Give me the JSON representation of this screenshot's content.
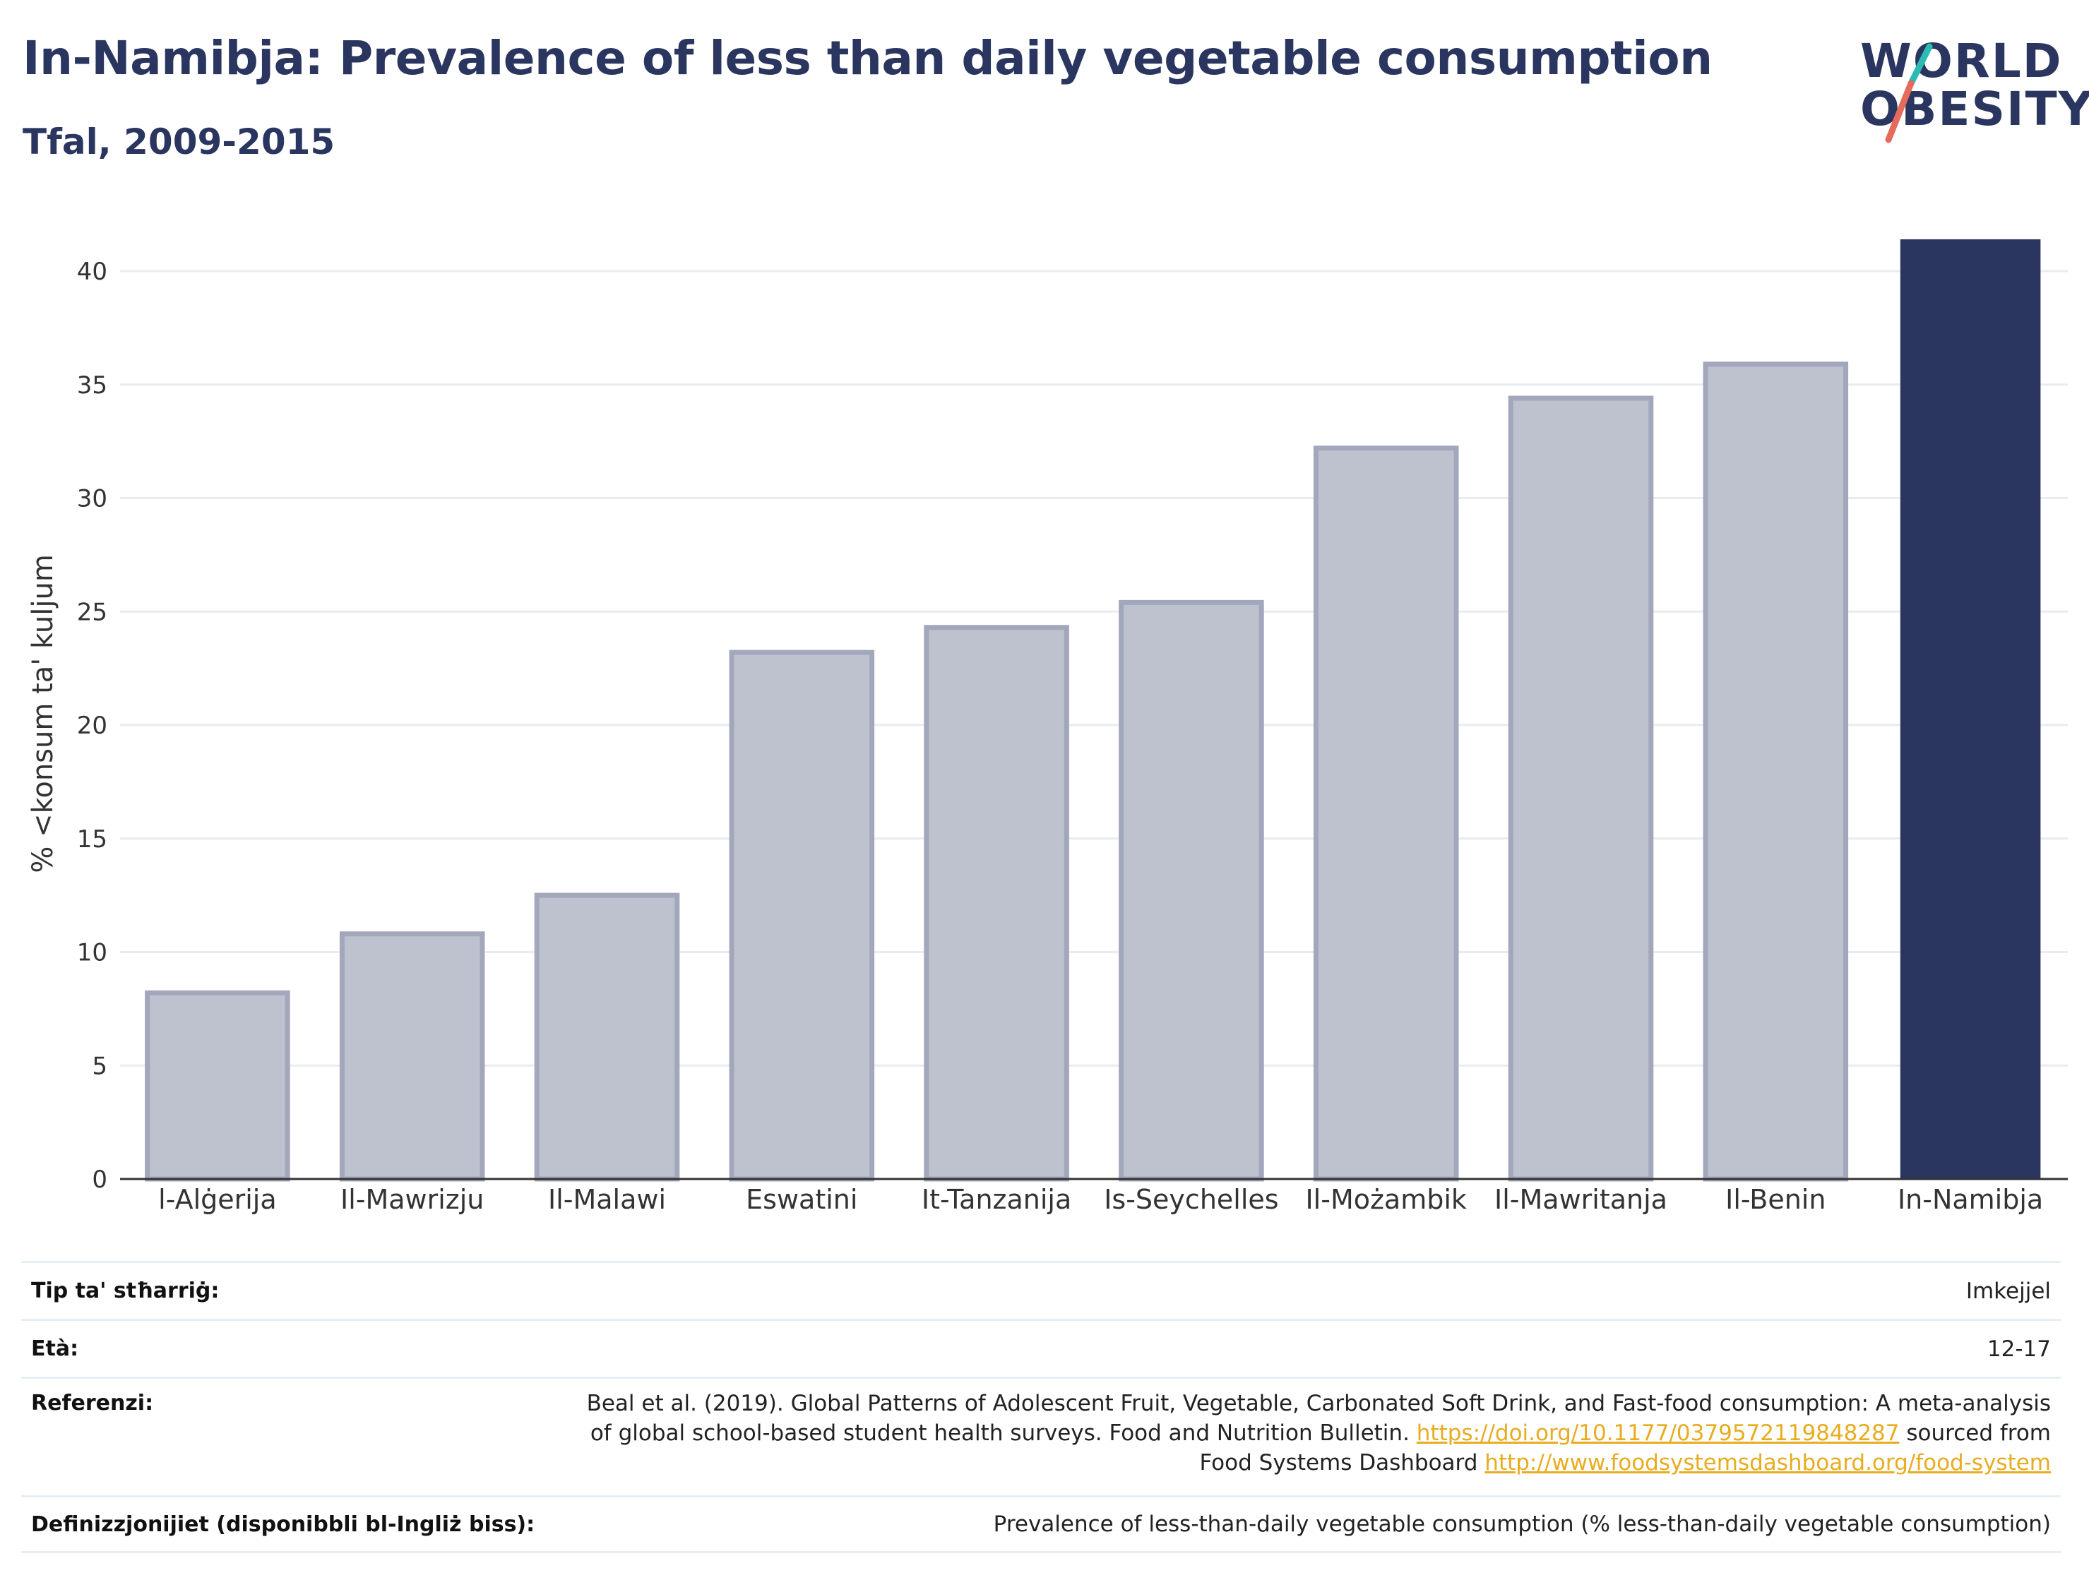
{
  "header": {
    "title": "In-Namibja: Prevalence of less than daily vegetable consumption",
    "subtitle": "Tfal, 2009-2015"
  },
  "logo": {
    "line1": "WORLD",
    "line2": "OBESITY",
    "slash_colors": [
      "#2bbbb3",
      "#e56b5d"
    ]
  },
  "colors": {
    "highlight_bar": "#2b3660",
    "other_bar_fill": "#bec1ce",
    "other_bar_stroke": "#a3a7bc",
    "link": "#e8ac1f"
  },
  "chart_data": {
    "type": "bar",
    "title": "In-Namibja: Prevalence of less than daily vegetable consumption",
    "subtitle": "Tfal, 2009-2015",
    "xlabel": "",
    "ylabel": "% <konsum ta' kuljum",
    "ylim": [
      0,
      42
    ],
    "yticks": [
      0,
      5,
      10,
      15,
      20,
      25,
      30,
      35,
      40
    ],
    "grid": true,
    "categories": [
      "l-Alġerija",
      "Il-Mawrizju",
      "Il-Malawi",
      "Eswatini",
      "It-Tanzanija",
      "Is-Seychelles",
      "Il-Możambik",
      "Il-Mawritanja",
      "Il-Benin",
      "In-Namibja"
    ],
    "values": [
      8.2,
      10.8,
      12.5,
      23.2,
      24.3,
      25.4,
      32.2,
      34.4,
      35.9,
      41.4
    ],
    "highlight": "In-Namibja"
  },
  "meta": {
    "rows": [
      {
        "key": "Tip ta' stħarriġ:",
        "value": "Imkejjel"
      },
      {
        "key": "Età:",
        "value": "12-17"
      },
      {
        "key": "Referenzi:",
        "value_lines": [
          "Beal et al. (2019). Global Patterns of Adolescent Fruit, Vegetable, Carbonated Soft Drink, and Fast-food consumption: A meta-analysis",
          "of global school-based student health surveys. Food and Nutrition Bulletin.",
          "https://doi.org/10.1177/0379572119848287",
          "sourced from",
          "Food Systems Dashboard",
          "http://www.foodsystemsdashboard.org/food-system"
        ]
      },
      {
        "key": "Definizzjonijiet (disponibbli bl-Ingliż biss):",
        "value": "Prevalence of less-than-daily vegetable consumption (% less-than-daily vegetable consumption)"
      }
    ]
  }
}
